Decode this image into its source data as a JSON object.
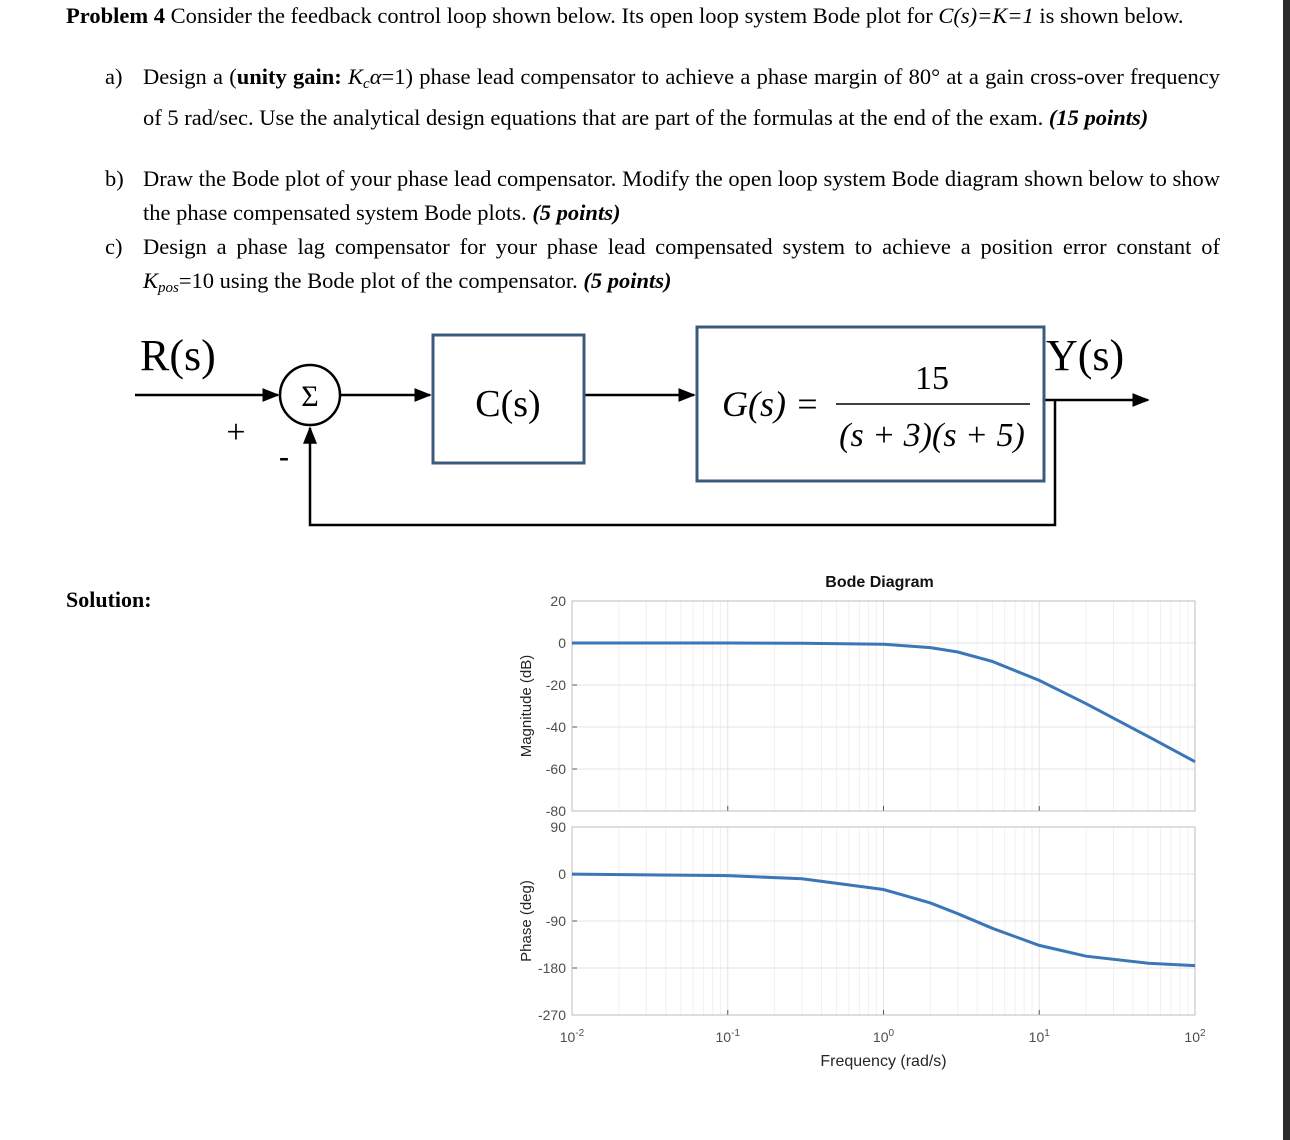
{
  "intro": [
    {
      "t": "Problem 4",
      "s": "b"
    },
    {
      "t": " Consider the feedback control loop shown below. Its open loop system Bode plot for "
    },
    {
      "t": "C(s)=K=1",
      "s": "i"
    },
    {
      "t": " is shown below."
    }
  ],
  "parts": [
    {
      "label": "a)",
      "runs": [
        {
          "t": "Design a ("
        },
        {
          "t": "unity gain: ",
          "s": "b"
        },
        {
          "t": "K",
          "s": "i"
        },
        {
          "t": "c",
          "s": "isub"
        },
        {
          "t": "α",
          "s": "i"
        },
        {
          "t": "=1) phase lead compensator to achieve a phase margin of 80° at a gain cross-over frequency of 5 rad/sec. Use the analytical design equations that are part of the formulas at the end of the exam. "
        },
        {
          "t": "(15 points)",
          "s": "bi"
        }
      ]
    },
    {
      "label": "b)",
      "runs": [
        {
          "t": "Draw the Bode plot of your phase lead compensator. Modify the open loop system Bode diagram shown below to show the phase compensated system Bode plots. "
        },
        {
          "t": "(5 points)",
          "s": "bi"
        }
      ]
    },
    {
      "label": "c)",
      "runs": [
        {
          "t": "Design a phase lag compensator for your phase lead compensated system to achieve a position error constant of "
        },
        {
          "t": "K",
          "s": "i"
        },
        {
          "t": "pos",
          "s": "isub"
        },
        {
          "t": "=10 using the Bode plot of the compensator. "
        },
        {
          "t": "(5 points)",
          "s": "bi"
        }
      ]
    }
  ],
  "diagram": {
    "input": "R(s)",
    "sum": "Σ",
    "plus": "+",
    "minus": "-",
    "controller": "C(s)",
    "plant_lhs": "G(s) =",
    "plant_num": "15",
    "plant_den": "(s + 3)(s + 5)",
    "output": "Y(s)"
  },
  "solution_label": "Solution:",
  "chart_data": [
    {
      "type": "line",
      "title": "Bode Diagram",
      "ylabel": "Magnitude (dB)",
      "xscale": "log",
      "grid": true,
      "xlim": [
        0.01,
        100
      ],
      "ylim": [
        -80,
        20
      ],
      "yticks": [
        -80,
        -60,
        -40,
        -20,
        0,
        20
      ],
      "x": [
        0.01,
        0.1,
        0.3,
        1,
        2,
        3,
        5,
        10,
        20,
        50,
        100
      ],
      "series": [
        {
          "color": "#3a76b8",
          "values": [
            0,
            0,
            -0.1,
            -0.6,
            -2.2,
            -4.3,
            -8.8,
            -17.8,
            -28.9,
            -44.5,
            -56.5
          ]
        }
      ]
    },
    {
      "type": "line",
      "ylabel": "Phase (deg)",
      "xlabel": "Frequency (rad/s)",
      "xscale": "log",
      "grid": true,
      "xlim": [
        0.01,
        100
      ],
      "ylim": [
        -270,
        90
      ],
      "yticks": [
        -270,
        -180,
        -90,
        0,
        90
      ],
      "xticks": [
        {
          "value": 0.01,
          "label": "10",
          "exponent": "-2"
        },
        {
          "value": 0.1,
          "label": "10",
          "exponent": "-1"
        },
        {
          "value": 1,
          "label": "10",
          "exponent": "0"
        },
        {
          "value": 10,
          "label": "10",
          "exponent": "1"
        },
        {
          "value": 100,
          "label": "10",
          "exponent": "2"
        }
      ],
      "x": [
        0.01,
        0.1,
        0.3,
        1,
        2,
        3,
        5,
        10,
        20,
        50,
        100
      ],
      "series": [
        {
          "color": "#3a76b8",
          "values": [
            -0.3,
            -3.1,
            -9.1,
            -29.7,
            -55.5,
            -76.0,
            -104.0,
            -136.7,
            -157.4,
            -170.9,
            -175.4
          ]
        }
      ]
    }
  ]
}
